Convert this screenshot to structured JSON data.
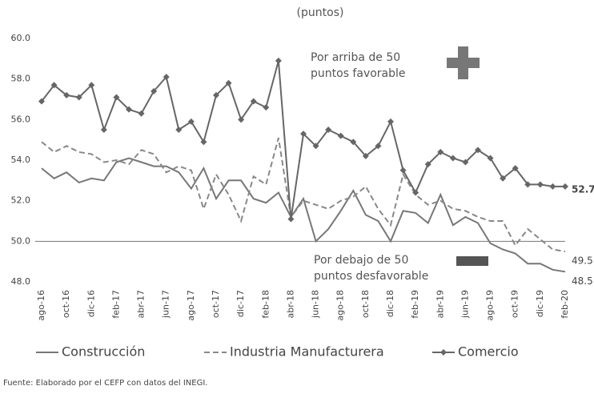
{
  "chart_data": {
    "type": "line",
    "subtitle": "(puntos)",
    "categories": [
      "ago-16",
      null,
      "oct-16",
      null,
      "dic-16",
      null,
      "feb-17",
      null,
      "abr-17",
      null,
      "jun-17",
      null,
      "ago-17",
      null,
      "oct-17",
      null,
      "dic-17",
      null,
      "feb-18",
      null,
      "abr-18",
      null,
      "jun-18",
      null,
      "ago-18",
      null,
      "oct-18",
      null,
      "dic-18",
      null,
      "feb-19",
      null,
      "abr-19",
      null,
      "jun-19",
      null,
      "ago-19",
      null,
      "oct-19",
      null,
      "dic-19",
      null,
      "feb-20"
    ],
    "series": [
      {
        "name": "Construcción",
        "color": "#777777",
        "dash": "solid",
        "marker": "none",
        "values": [
          53.6,
          53.1,
          53.4,
          52.9,
          53.1,
          53.0,
          53.9,
          54.1,
          53.9,
          53.7,
          53.7,
          53.4,
          52.6,
          53.6,
          52.1,
          53.0,
          53.0,
          52.1,
          51.9,
          52.4,
          51.2,
          52.1,
          50.0,
          50.6,
          51.5,
          52.5,
          51.3,
          51.0,
          50.0,
          51.5,
          51.4,
          50.9,
          52.3,
          50.8,
          51.2,
          50.9,
          49.9,
          49.6,
          49.4,
          48.9,
          48.9,
          48.6,
          48.5
        ]
      },
      {
        "name": "Industria Manufacturera",
        "color": "#888888",
        "dash": "dashed",
        "marker": "none",
        "values": [
          54.9,
          54.4,
          54.7,
          54.4,
          54.3,
          53.9,
          54.0,
          53.8,
          54.5,
          54.3,
          53.4,
          53.7,
          53.5,
          51.6,
          53.3,
          52.3,
          51.0,
          53.2,
          52.8,
          55.1,
          51.2,
          52.0,
          51.8,
          51.6,
          52.0,
          52.2,
          52.7,
          51.6,
          50.8,
          53.3,
          52.3,
          51.8,
          52.0,
          51.6,
          51.5,
          51.2,
          51.0,
          51.0,
          49.8,
          50.6,
          50.1,
          49.6,
          49.5
        ]
      },
      {
        "name": "Comercio",
        "color": "#666666",
        "dash": "solid",
        "marker": "diamond",
        "values": [
          56.9,
          57.7,
          57.2,
          57.1,
          57.7,
          55.5,
          57.1,
          56.5,
          56.3,
          57.4,
          58.1,
          55.5,
          55.9,
          54.9,
          57.2,
          57.8,
          56.0,
          56.9,
          56.6,
          58.9,
          51.1,
          55.3,
          54.7,
          55.5,
          55.2,
          54.9,
          54.2,
          54.7,
          55.9,
          53.5,
          52.4,
          53.8,
          54.4,
          54.1,
          53.9,
          54.5,
          54.1,
          53.1,
          53.6,
          52.8,
          52.8,
          52.7,
          52.7
        ]
      }
    ],
    "ylim": [
      48,
      60
    ],
    "yticks": [
      {
        "value": 48,
        "label": "48.0"
      },
      {
        "value": 50,
        "label": "50.0"
      },
      {
        "value": 52,
        "label": "52.0"
      },
      {
        "value": 54,
        "label": "54.0"
      },
      {
        "value": 56,
        "label": "56.0"
      },
      {
        "value": 58,
        "label": "58.0"
      },
      {
        "value": 60,
        "label": "60.0"
      }
    ],
    "grid": false,
    "reference_line": 50,
    "annotations": [
      "Por arriba de 50",
      "puntos favorable",
      "Por debajo de 50",
      "puntos desfavorable"
    ],
    "legend": "bottom",
    "source": "Fuente: Elaborado por el CEFP con datos del INEGI."
  }
}
